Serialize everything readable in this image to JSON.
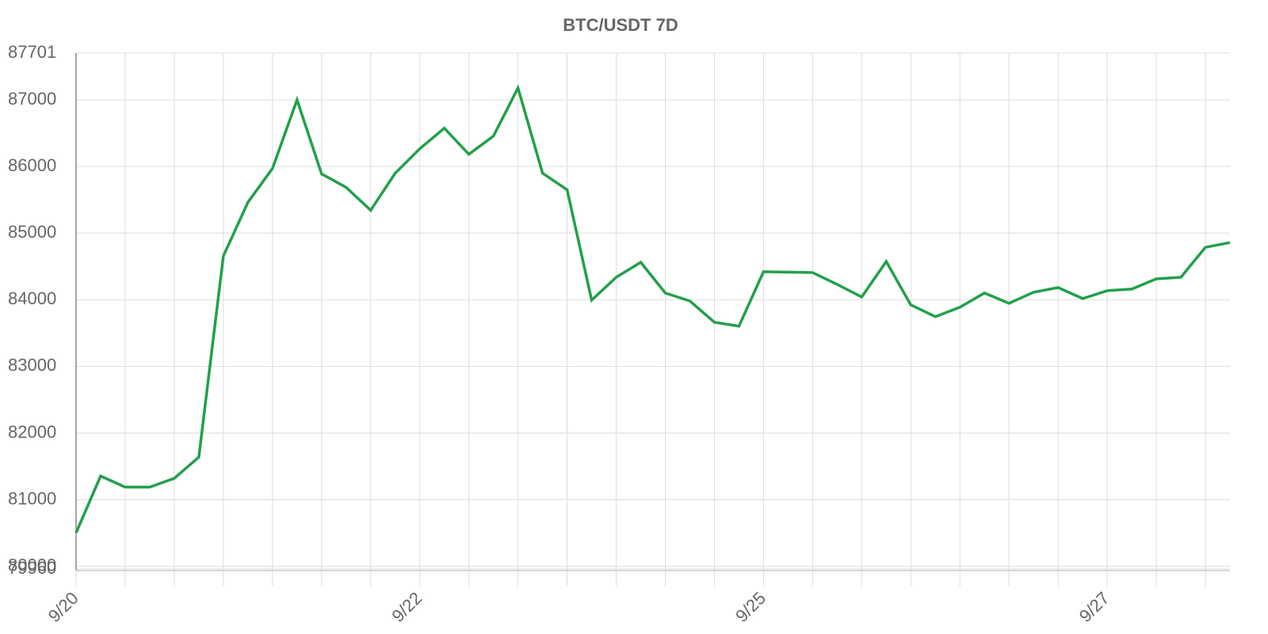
{
  "chart_data": {
    "type": "line",
    "title": "BTC/USDT 7D",
    "categories": [
      "9/20",
      null,
      null,
      null,
      null,
      null,
      null,
      null,
      null,
      null,
      null,
      null,
      null,
      null,
      "9/22",
      null,
      null,
      null,
      null,
      null,
      null,
      null,
      null,
      null,
      null,
      null,
      null,
      null,
      "9/25",
      null,
      null,
      null,
      null,
      null,
      null,
      null,
      null,
      null,
      null,
      null,
      null,
      null,
      "9/27",
      null,
      null,
      null,
      null,
      null
    ],
    "series": [
      {
        "name": "BTC/USDT",
        "color": "#22a04b",
        "values": [
          80503,
          81355,
          81189,
          81189,
          81320,
          81639,
          84657,
          85462,
          85970,
          87000,
          85888,
          85686,
          85343,
          85899,
          86266,
          86574,
          86183,
          86456,
          87178,
          85899,
          85651,
          83994,
          84337,
          84562,
          84101,
          83982,
          83663,
          83604,
          84420,
          84414,
          84408,
          84231,
          84041,
          84574,
          83923,
          83746,
          83888,
          84101,
          83947,
          84112,
          84183,
          84018,
          84136,
          84160,
          84314,
          84337,
          84787,
          84858
        ]
      }
    ],
    "ylim": [
      79960,
      87701
    ],
    "yticks": [
      79960,
      80000,
      81000,
      82000,
      83000,
      84000,
      85000,
      86000,
      87000,
      87701
    ],
    "grid": true
  }
}
